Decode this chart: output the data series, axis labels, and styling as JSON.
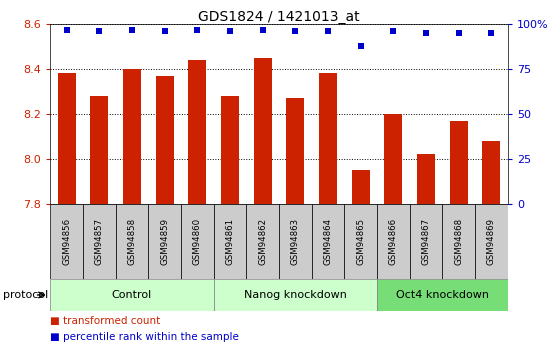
{
  "title": "GDS1824 / 1421013_at",
  "samples": [
    "GSM94856",
    "GSM94857",
    "GSM94858",
    "GSM94859",
    "GSM94860",
    "GSM94861",
    "GSM94862",
    "GSM94863",
    "GSM94864",
    "GSM94865",
    "GSM94866",
    "GSM94867",
    "GSM94868",
    "GSM94869"
  ],
  "bar_values": [
    8.38,
    8.28,
    8.4,
    8.37,
    8.44,
    8.28,
    8.45,
    8.27,
    8.38,
    7.95,
    8.2,
    8.02,
    8.17,
    8.08
  ],
  "dot_values": [
    97,
    96,
    97,
    96,
    97,
    96,
    97,
    96,
    96,
    88,
    96,
    95,
    95,
    95
  ],
  "groups": [
    {
      "label": "Control",
      "start": 0,
      "end": 5,
      "color": "#ccffcc"
    },
    {
      "label": "Nanog knockdown",
      "start": 5,
      "end": 10,
      "color": "#ccffcc"
    },
    {
      "label": "Oct4 knockdown",
      "start": 10,
      "end": 14,
      "color": "#77dd77"
    }
  ],
  "ylim_left": [
    7.8,
    8.6
  ],
  "ylim_right": [
    0,
    100
  ],
  "yticks_left": [
    7.8,
    8.0,
    8.2,
    8.4,
    8.6
  ],
  "yticks_right": [
    0,
    25,
    50,
    75,
    100
  ],
  "bar_color": "#cc2200",
  "dot_color": "#0000cc",
  "grid_color": "#000000",
  "bg_color": "#ffffff",
  "tick_bg": "#cccccc",
  "title_fontsize": 10,
  "legend_items": [
    "transformed count",
    "percentile rank within the sample"
  ],
  "protocol_label": "protocol"
}
